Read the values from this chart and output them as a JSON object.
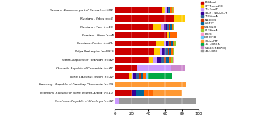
{
  "populations": [
    "Russians -European part of Russia (n=1384)",
    "Russians - Pskov (n=2)",
    "Russians - Tver (n=12)",
    "Russians - Kirov (n=4)",
    "Russians - Rostov (n=21)",
    "Volga-Ural region (n=593))",
    "Tatars -Republic of Tatarstan (n=42)",
    "Chuvash -Republic of Chuvashia (n=47)",
    "North Caucasus region (n=12)",
    "Karachay - Republic of Karachay-Cherkessia (n=19)",
    "Ossetians -Republic of North Ossetia-Alania (n=10)",
    "Chechens - Republic of Chechnya (n=32)"
  ],
  "mutations": [
    "F508del",
    "CFTRdele2,3",
    "2143delT",
    "3849+10kbC>T",
    "2184insA",
    "N1303K",
    "G542X",
    "W1282X",
    "L138insA",
    "E92K",
    "W1282R",
    "394delTT",
    "1677delTA",
    "S466X;R1070Q",
    "3821delT"
  ],
  "colors": [
    "#CC0000",
    "#FFCC00",
    "#CC99FF",
    "#330099",
    "#336699",
    "#CC3300",
    "#006699",
    "#FF6600",
    "#99CC33",
    "#FF99CC",
    "#66CCFF",
    "#FF9933",
    "#00AA44",
    "#CC88CC",
    "#999999"
  ],
  "data": [
    [
      57,
      3,
      2,
      1,
      1,
      1,
      1,
      2,
      1,
      0,
      0,
      1,
      0,
      0,
      0
    ],
    [
      70,
      13,
      0,
      0,
      0,
      0,
      0,
      0,
      0,
      0,
      0,
      0,
      0,
      0,
      0
    ],
    [
      46,
      9,
      4,
      3,
      2,
      2,
      2,
      1,
      1,
      1,
      0,
      0,
      0,
      0,
      0
    ],
    [
      62,
      2,
      0,
      0,
      2,
      0,
      0,
      8,
      0,
      0,
      0,
      0,
      0,
      0,
      0
    ],
    [
      49,
      10,
      2,
      2,
      2,
      2,
      2,
      2,
      2,
      0,
      0,
      0,
      0,
      0,
      0
    ],
    [
      47,
      7,
      3,
      3,
      3,
      2,
      2,
      2,
      1,
      1,
      0,
      0,
      0,
      0,
      0
    ],
    [
      41,
      5,
      5,
      4,
      3,
      3,
      3,
      3,
      2,
      2,
      0,
      0,
      0,
      0,
      0
    ],
    [
      27,
      0,
      40,
      0,
      0,
      0,
      0,
      0,
      0,
      0,
      0,
      0,
      0,
      16,
      0
    ],
    [
      17,
      3,
      2,
      3,
      3,
      3,
      3,
      3,
      0,
      0,
      3,
      0,
      28,
      0,
      0
    ],
    [
      0,
      0,
      0,
      0,
      0,
      0,
      0,
      0,
      0,
      0,
      0,
      85,
      0,
      0,
      0
    ],
    [
      20,
      0,
      0,
      5,
      0,
      0,
      10,
      10,
      0,
      0,
      0,
      35,
      0,
      0,
      0
    ],
    [
      0,
      0,
      5,
      0,
      0,
      0,
      0,
      0,
      0,
      0,
      0,
      0,
      0,
      0,
      92
    ]
  ],
  "xlim": [
    0,
    100
  ],
  "xticks": [
    0,
    20,
    40,
    60,
    80,
    100
  ],
  "figsize": [
    4.0,
    1.73
  ],
  "dpi": 100
}
